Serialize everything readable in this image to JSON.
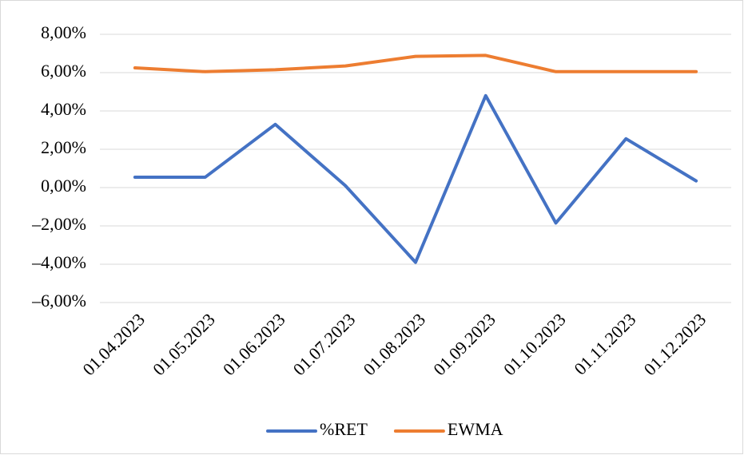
{
  "chart_data": {
    "type": "line",
    "categories": [
      "01.04.2023",
      "01.05.2023",
      "01.06.2023",
      "01.07.2023",
      "01.08.2023",
      "01.09.2023",
      "01.10.2023",
      "01.11.2023",
      "01.12.2023"
    ],
    "series": [
      {
        "name": "%RET",
        "color": "#4472c4",
        "values": [
          0.54,
          0.54,
          3.3,
          0.1,
          -3.9,
          4.8,
          -1.85,
          2.55,
          0.35
        ]
      },
      {
        "name": "EWMA",
        "color": "#ed7d31",
        "values": [
          6.25,
          6.05,
          6.15,
          6.35,
          6.85,
          6.9,
          6.05,
          6.05,
          6.05
        ]
      }
    ],
    "ylim": [
      -6,
      8
    ],
    "yticks": [
      {
        "value": -6,
        "label": "–6,00%"
      },
      {
        "value": -4,
        "label": "–4,00%"
      },
      {
        "value": -2,
        "label": "–2,00%"
      },
      {
        "value": 0,
        "label": "0,00%"
      },
      {
        "value": 2,
        "label": "2,00%"
      },
      {
        "value": 4,
        "label": "4,00%"
      },
      {
        "value": 6,
        "label": "6,00%"
      },
      {
        "value": 8,
        "label": "8,00%"
      }
    ],
    "grid": true,
    "legend": "bottom"
  }
}
